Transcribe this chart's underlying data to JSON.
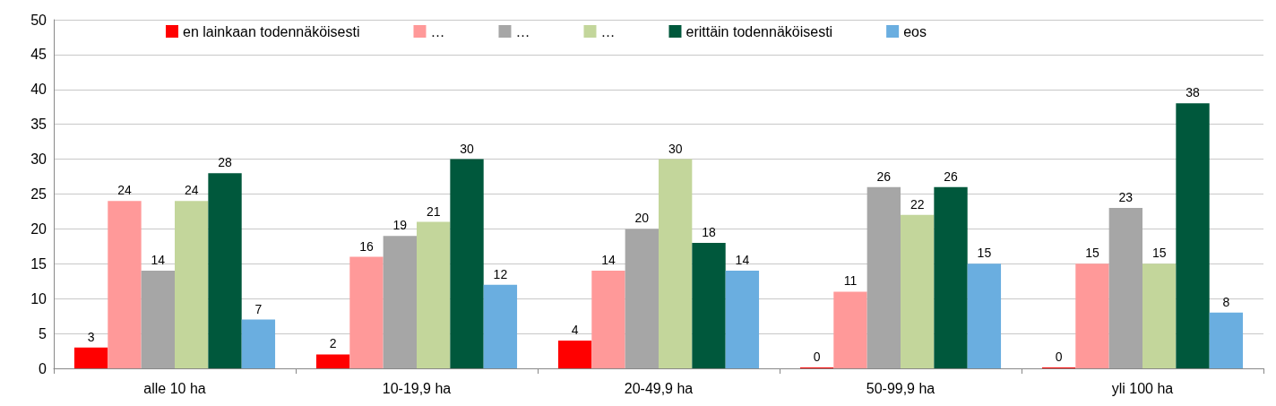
{
  "chart_data": {
    "type": "bar",
    "categories": [
      "alle 10 ha",
      "10-19,9 ha",
      "20-49,9 ha",
      "50-99,9 ha",
      "yli 100 ha"
    ],
    "series": [
      {
        "name": "en lainkaan todennäköisesti",
        "color": "#ff0000",
        "values": [
          3,
          2,
          4,
          0,
          0
        ]
      },
      {
        "name": "…",
        "color": "#ff9999",
        "values": [
          24,
          16,
          14,
          11,
          15
        ]
      },
      {
        "name": "…",
        "color": "#a6a6a6",
        "values": [
          14,
          19,
          20,
          26,
          23
        ]
      },
      {
        "name": "…",
        "color": "#c3d69b",
        "values": [
          24,
          21,
          30,
          22,
          15
        ]
      },
      {
        "name": "erittäin todennäköisesti",
        "color": "#00583c",
        "values": [
          28,
          30,
          18,
          26,
          38
        ]
      },
      {
        "name": "eos",
        "color": "#6aaee0",
        "values": [
          7,
          12,
          14,
          15,
          8
        ]
      }
    ],
    "ylim": [
      0,
      50
    ],
    "yticks": [
      0,
      5,
      10,
      15,
      20,
      25,
      30,
      35,
      40,
      45,
      50
    ],
    "grid": "y",
    "legend": "top",
    "data_labels": true
  }
}
